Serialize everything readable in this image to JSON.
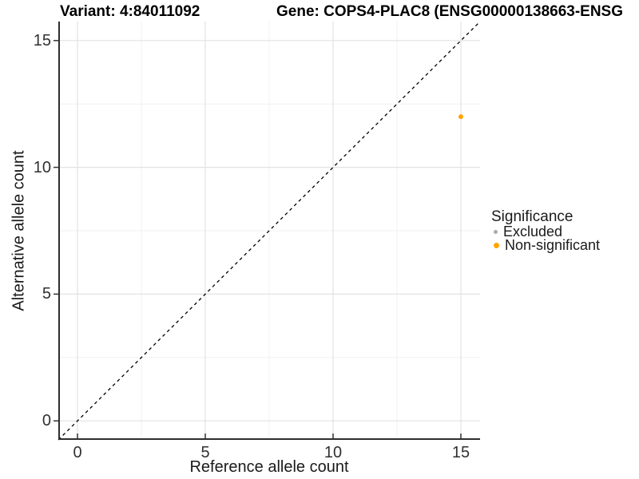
{
  "chart_data": {
    "type": "scatter",
    "title": {
      "variant": "Variant: 4:84011092",
      "gene": "Gene: COPS4-PLAC8 (ENSG00000138663-ENSG"
    },
    "xlabel": "Reference allele count",
    "ylabel": "Alternative allele count",
    "xlim": [
      -0.75,
      15.75
    ],
    "ylim": [
      -0.75,
      15.75
    ],
    "x_ticks": [
      0,
      5,
      10,
      15
    ],
    "y_ticks": [
      0,
      5,
      10,
      15
    ],
    "x_minor": [
      2.5,
      7.5,
      12.5
    ],
    "y_minor": [
      2.5,
      7.5,
      12.5
    ],
    "identity_line": {
      "style": "dashed",
      "color": "#000000",
      "from": -0.75,
      "to": 15.75,
      "dash": [
        4,
        4
      ]
    },
    "points": [
      {
        "x": 15,
        "y": 12,
        "significance": "Non-significant",
        "color": "#FFA500",
        "diameter": 6
      }
    ],
    "legend": {
      "title": "Significance",
      "position": "right",
      "entries": [
        {
          "label": "Excluded",
          "color": "#ABABAB",
          "diameter": 5
        },
        {
          "label": "Non-significant",
          "color": "#FFA500",
          "diameter": 7
        }
      ]
    },
    "colors": {
      "grid_major": "#e2e2e2",
      "grid_minor": "#f0f0f0",
      "axis_line": "#2e2e2e",
      "tick_mark": "#333333",
      "point_orange": "#FFA500",
      "point_grey": "#ABABAB"
    }
  }
}
